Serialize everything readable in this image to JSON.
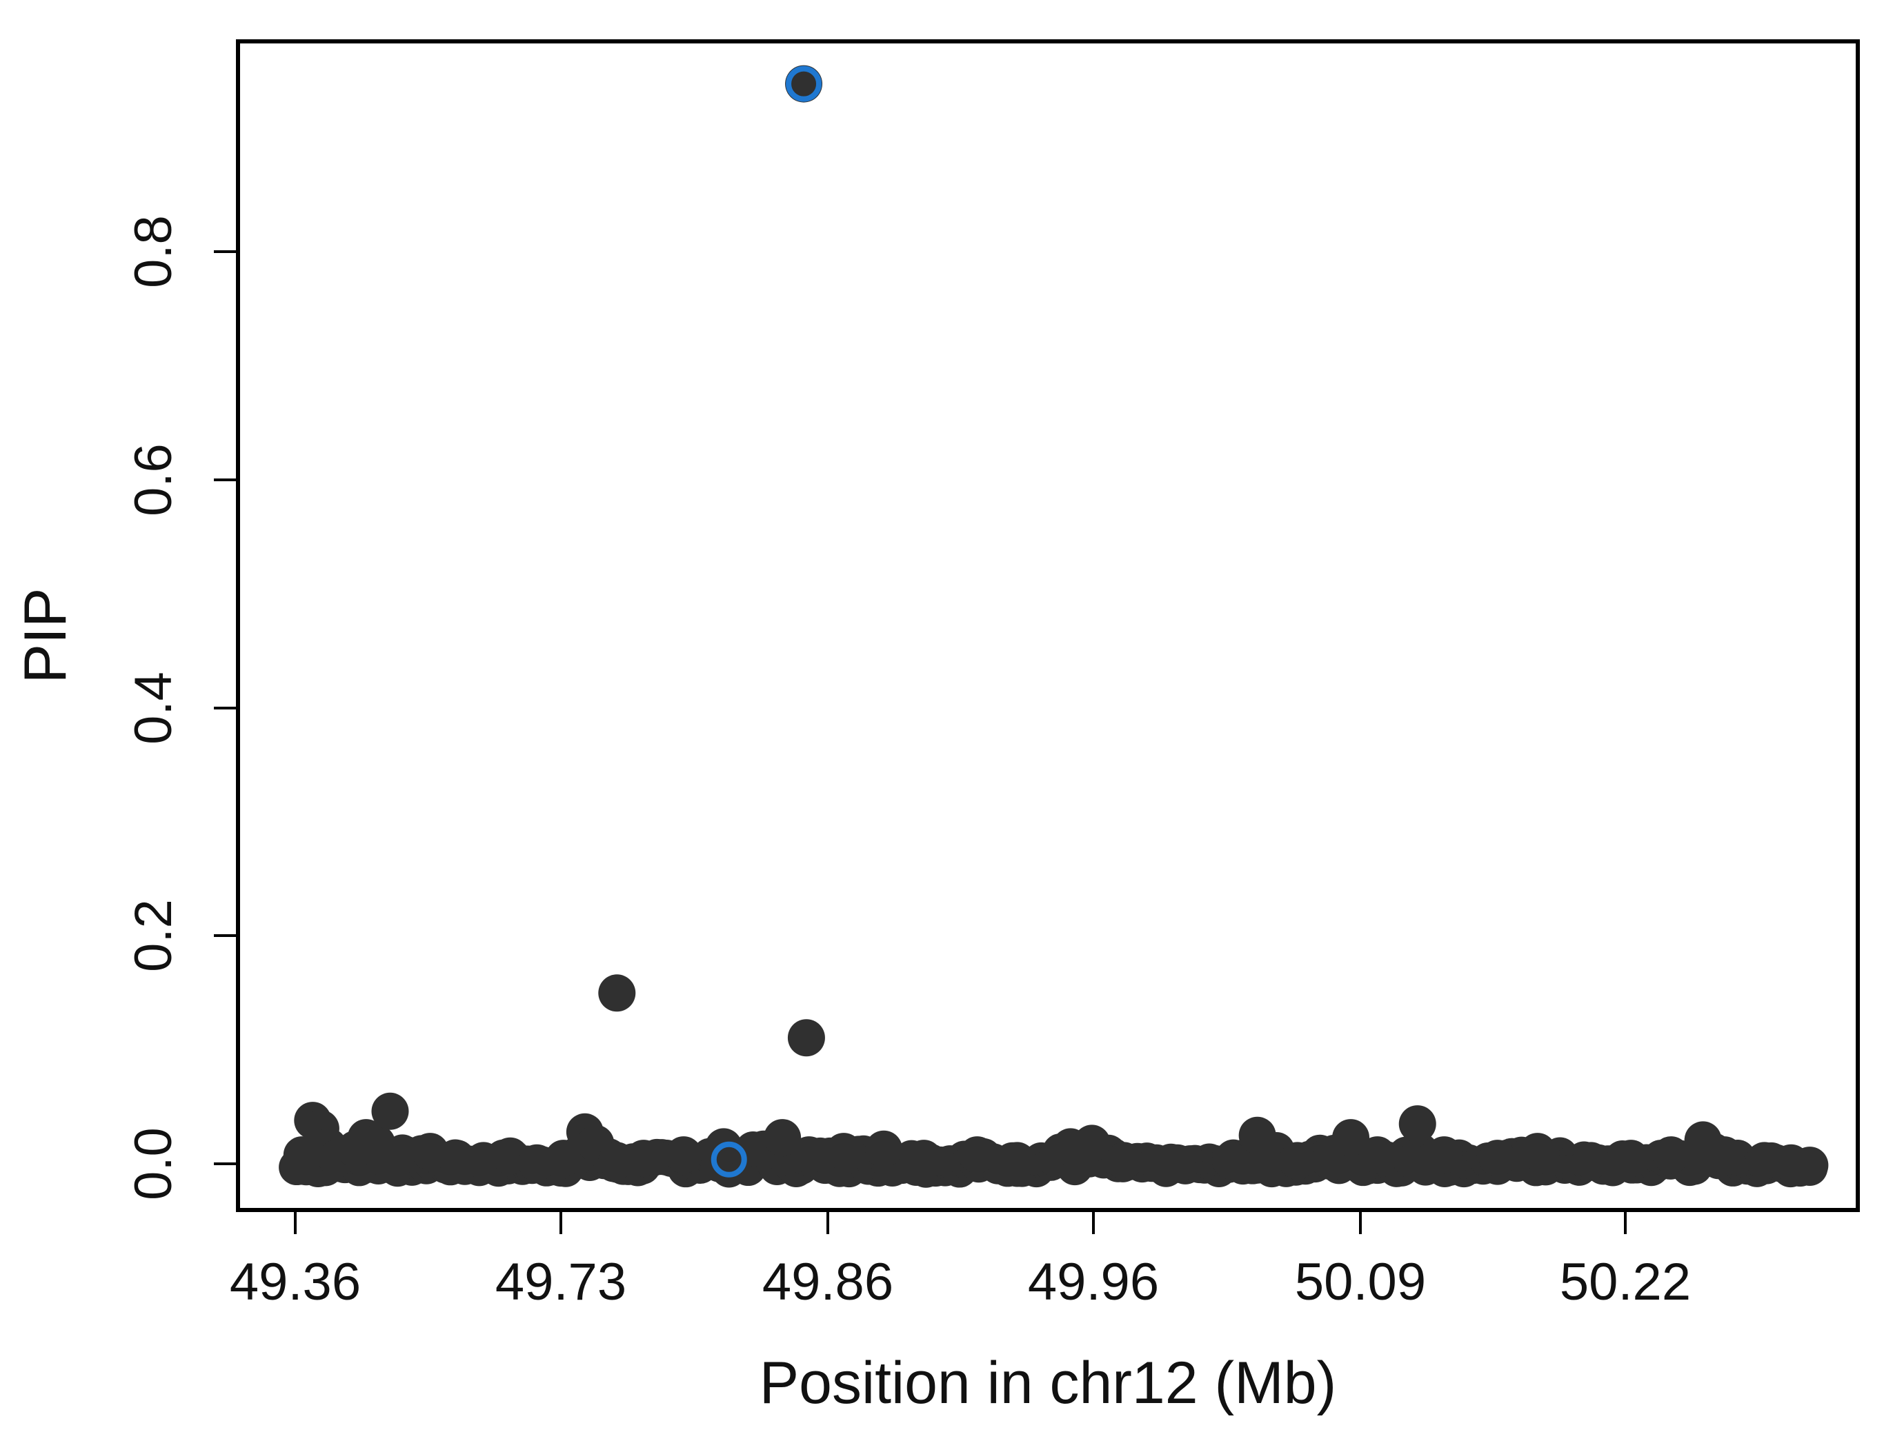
{
  "chart_data": {
    "type": "scatter",
    "title": "",
    "xlabel": "Position in chr12 (Mb)",
    "ylabel": "PIP",
    "x_ticks": [
      "49.36",
      "49.73",
      "49.86",
      "49.96",
      "50.09",
      "50.22"
    ],
    "y_ticks": [
      "0.0",
      "0.2",
      "0.4",
      "0.6",
      "0.8"
    ],
    "y_tick_values": [
      0.0,
      0.2,
      0.4,
      0.6,
      0.8
    ],
    "ylim": [
      -0.033,
      0.985
    ],
    "grid": false,
    "legend": "none",
    "x_axis_note": "tick labels are unevenly spaced genomic positions; x is given in equally spaced tick-index units (0 = 49.36, 5 = 50.22)",
    "xlim": [
      -0.22,
      5.85
    ],
    "colors": {
      "points": "#303030",
      "highlight": "#1f78d1",
      "axis": "#000000"
    },
    "series": [
      {
        "points": [
          {
            "x": 0.02,
            "y": 0.015
          },
          {
            "x": 0.06,
            "y": 0.045
          },
          {
            "x": 0.09,
            "y": 0.038
          },
          {
            "x": 0.12,
            "y": 0.022
          },
          {
            "x": 0.08,
            "y": 0.003
          },
          {
            "x": 0.15,
            "y": 0.012
          },
          {
            "x": 0.22,
            "y": 0.02
          },
          {
            "x": 0.26,
            "y": 0.03
          },
          {
            "x": 0.3,
            "y": 0.025
          },
          {
            "x": 0.35,
            "y": 0.053
          },
          {
            "x": 0.4,
            "y": 0.015
          },
          {
            "x": 0.5,
            "y": 0.018
          },
          {
            "x": 0.6,
            "y": 0.012
          },
          {
            "x": 0.7,
            "y": 0.01
          },
          {
            "x": 0.8,
            "y": 0.014
          },
          {
            "x": 0.9,
            "y": 0.008
          },
          {
            "x": 1.0,
            "y": 0.012
          },
          {
            "x": 1.08,
            "y": 0.035
          },
          {
            "x": 1.12,
            "y": 0.025
          },
          {
            "x": 1.2,
            "y": 0.01
          },
          {
            "x": 1.3,
            "y": 0.012
          },
          {
            "x": 1.45,
            "y": 0.015
          },
          {
            "x": 1.6,
            "y": 0.022
          },
          {
            "x": 1.75,
            "y": 0.02
          },
          {
            "x": 1.82,
            "y": 0.03
          },
          {
            "x": 1.92,
            "y": 0.015
          },
          {
            "x": 2.05,
            "y": 0.018
          },
          {
            "x": 2.2,
            "y": 0.02
          },
          {
            "x": 2.35,
            "y": 0.012
          },
          {
            "x": 2.55,
            "y": 0.015
          },
          {
            "x": 2.7,
            "y": 0.01
          },
          {
            "x": 2.9,
            "y": 0.022
          },
          {
            "x": 2.98,
            "y": 0.025
          },
          {
            "x": 3.1,
            "y": 0.01
          },
          {
            "x": 3.3,
            "y": 0.008
          },
          {
            "x": 3.5,
            "y": 0.01
          },
          {
            "x": 3.6,
            "y": 0.032
          },
          {
            "x": 3.75,
            "y": 0.01
          },
          {
            "x": 3.95,
            "y": 0.03
          },
          {
            "x": 4.05,
            "y": 0.015
          },
          {
            "x": 4.2,
            "y": 0.042
          },
          {
            "x": 4.3,
            "y": 0.015
          },
          {
            "x": 4.5,
            "y": 0.012
          },
          {
            "x": 4.65,
            "y": 0.018
          },
          {
            "x": 4.85,
            "y": 0.01
          },
          {
            "x": 5.0,
            "y": 0.012
          },
          {
            "x": 5.15,
            "y": 0.015
          },
          {
            "x": 5.27,
            "y": 0.028
          },
          {
            "x": 5.35,
            "y": 0.015
          },
          {
            "x": 5.5,
            "y": 0.01
          },
          {
            "x": 5.6,
            "y": 0.008
          },
          {
            "x": 5.67,
            "y": 0.006
          },
          {
            "x": 1.2,
            "y": 0.156
          },
          {
            "x": 1.91,
            "y": 0.117
          },
          {
            "x": 1.9,
            "y": 0.948
          }
        ]
      },
      {
        "style": "open-circle",
        "points": [
          {
            "x": 1.62,
            "y": 0.011
          },
          {
            "x": 1.9,
            "y": 0.948
          }
        ]
      }
    ]
  }
}
